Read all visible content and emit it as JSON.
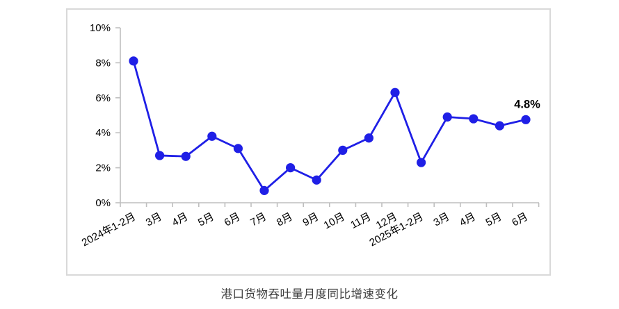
{
  "chart_data": {
    "type": "line",
    "title": "港口货物吞吐量月度同比增速变化",
    "categories": [
      "2024年1-2月",
      "3月",
      "4月",
      "5月",
      "6月",
      "7月",
      "8月",
      "9月",
      "10月",
      "11月",
      "12月",
      "2025年1-2月",
      "3月",
      "4月",
      "5月",
      "6月"
    ],
    "values": [
      8.1,
      2.7,
      2.65,
      3.8,
      3.1,
      0.7,
      2.0,
      1.3,
      3.0,
      3.7,
      6.3,
      2.3,
      4.9,
      4.8,
      4.4,
      4.75
    ],
    "y_ticks": [
      "0%",
      "2%",
      "4%",
      "6%",
      "8%",
      "10%"
    ],
    "ylim": [
      0,
      10
    ],
    "xlabel": "",
    "ylabel": "",
    "grid": false,
    "legend": null,
    "last_point_label": "4.8%",
    "colors": {
      "line": "#1f1fe6",
      "marker": "#1f1fe6",
      "axis": "#bfbfbf",
      "frame": "#d9d9d9",
      "tick_text": "#000000",
      "data_label": "#000000"
    }
  }
}
